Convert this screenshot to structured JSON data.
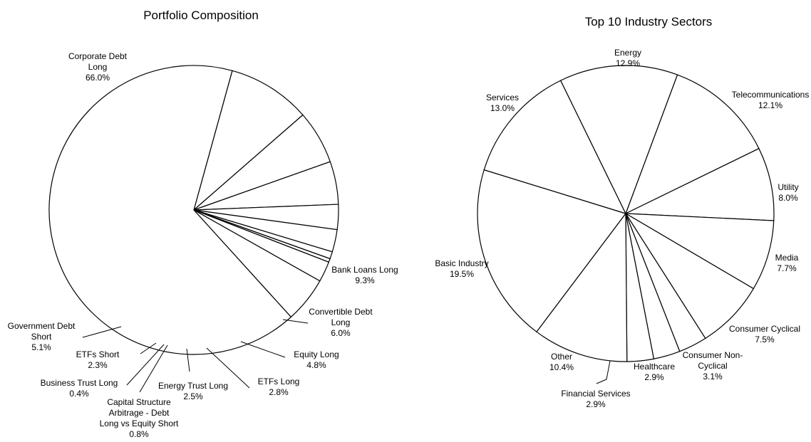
{
  "chart_data": [
    {
      "type": "pie",
      "title": "Portfolio Composition",
      "start_angle_deg": 74.6,
      "direction": "clockwise",
      "slices": [
        {
          "label": [
            "Bank Loans Long"
          ],
          "value_text": "9.3%",
          "value": 9.3
        },
        {
          "label": [
            "Convertible Debt",
            "Long"
          ],
          "value_text": "6.0%",
          "value": 6.0
        },
        {
          "label": [
            "Equity Long"
          ],
          "value_text": "4.8%",
          "value": 4.8
        },
        {
          "label": [
            "ETFs Long"
          ],
          "value_text": "2.8%",
          "value": 2.8
        },
        {
          "label": [
            "Energy Trust Long"
          ],
          "value_text": "2.5%",
          "value": 2.5
        },
        {
          "label": [
            "Capital Structure",
            "Arbitrage - Debt",
            "Long vs Equity Short"
          ],
          "value_text": "0.8%",
          "value": 0.8
        },
        {
          "label": [
            "Business Trust Long"
          ],
          "value_text": "0.4%",
          "value": 0.4
        },
        {
          "label": [
            "ETFs Short"
          ],
          "value_text": "2.3%",
          "value": 2.3
        },
        {
          "label": [
            "Government Debt",
            "Short"
          ],
          "value_text": "5.1%",
          "value": 5.1
        },
        {
          "label": [
            "Corporate Debt",
            "Long"
          ],
          "value_text": "66.0%",
          "value": 66.0
        }
      ]
    },
    {
      "type": "pie",
      "title": "Top 10 Industry Sectors",
      "start_angle_deg": 69.6,
      "direction": "clockwise",
      "slices": [
        {
          "label": [
            "Telecommunications"
          ],
          "value_text": "12.1%",
          "value": 12.1
        },
        {
          "label": [
            "Utility"
          ],
          "value_text": "8.0%",
          "value": 8.0
        },
        {
          "label": [
            "Media"
          ],
          "value_text": "7.7%",
          "value": 7.7
        },
        {
          "label": [
            "Consumer Cyclical"
          ],
          "value_text": "7.5%",
          "value": 7.5
        },
        {
          "label": [
            "Consumer Non-",
            "Cyclical"
          ],
          "value_text": "3.1%",
          "value": 3.1
        },
        {
          "label": [
            "Healthcare"
          ],
          "value_text": "2.9%",
          "value": 2.9
        },
        {
          "label": [
            "Financial Services"
          ],
          "value_text": "2.9%",
          "value": 2.9
        },
        {
          "label": [
            "Other"
          ],
          "value_text": "10.4%",
          "value": 10.4
        },
        {
          "label": [
            "Basic Industry"
          ],
          "value_text": "19.5%",
          "value": 19.5
        },
        {
          "label": [
            "Services"
          ],
          "value_text": "13.0%",
          "value": 13.0
        },
        {
          "label": [
            "Energy"
          ],
          "value_text": "12.9%",
          "value": 12.9
        }
      ]
    }
  ]
}
